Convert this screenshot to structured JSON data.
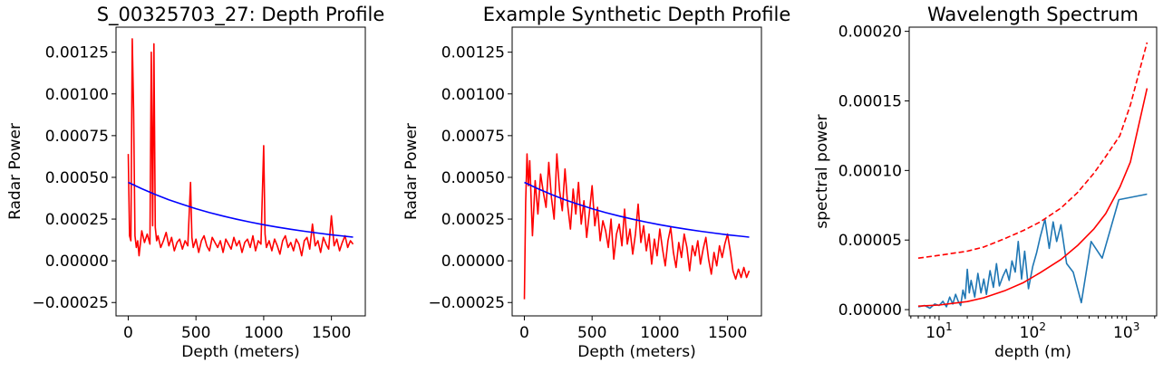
{
  "figure": {
    "bg": "#ffffff"
  },
  "chart_data": [
    {
      "type": "line",
      "title": "S_00325703_27: Depth Profile",
      "xlabel": "Depth (meters)",
      "ylabel": "Radar Power",
      "xlim": [
        -90,
        1750
      ],
      "ylim": [
        -0.00033,
        0.0014
      ],
      "xticks": [
        0,
        500,
        1000,
        1500
      ],
      "xtick_labels": [
        "0",
        "500",
        "1000",
        "1500"
      ],
      "yticks": [
        -0.00025,
        0,
        0.00025,
        0.0005,
        0.00075,
        0.001,
        0.00125
      ],
      "ytick_labels": [
        "−0.00025",
        "0.00000",
        "0.00025",
        "0.00050",
        "0.00075",
        "0.00100",
        "0.00125"
      ],
      "series": [
        {
          "color": "#ff0000",
          "x": [
            0,
            10,
            20,
            30,
            40,
            50,
            60,
            70,
            80,
            100,
            120,
            140,
            160,
            170,
            180,
            190,
            200,
            210,
            220,
            240,
            260,
            280,
            300,
            320,
            340,
            360,
            380,
            400,
            420,
            440,
            460,
            470,
            480,
            500,
            520,
            540,
            560,
            580,
            600,
            620,
            640,
            660,
            680,
            700,
            720,
            740,
            760,
            780,
            800,
            820,
            840,
            860,
            880,
            900,
            920,
            940,
            960,
            980,
            1000,
            1010,
            1020,
            1040,
            1060,
            1080,
            1100,
            1120,
            1140,
            1160,
            1180,
            1200,
            1220,
            1240,
            1260,
            1280,
            1300,
            1320,
            1340,
            1360,
            1380,
            1400,
            1420,
            1440,
            1460,
            1480,
            1500,
            1520,
            1540,
            1560,
            1580,
            1600,
            1620,
            1640,
            1660
          ],
          "y": [
            0.00064,
            0.00015,
            0.00012,
            0.00133,
            0.0009,
            0.00015,
            8e-05,
            0.00012,
            3e-05,
            0.00018,
            0.00011,
            0.00016,
            0.0001,
            0.00125,
            0.00021,
            0.0013,
            0.0002,
            0.00012,
            0.00015,
            8e-05,
            0.00012,
            0.00017,
            9e-05,
            0.00014,
            6e-05,
            0.00011,
            0.00013,
            7e-05,
            0.00012,
            9e-05,
            0.00047,
            0.00014,
            8e-05,
            0.00013,
            5e-05,
            0.00012,
            0.00015,
            9e-05,
            6e-05,
            0.00014,
            0.00011,
            8e-05,
            0.00012,
            5e-05,
            0.00013,
            0.0001,
            7e-05,
            0.00014,
            9e-05,
            0.00012,
            5e-05,
            0.00011,
            0.00013,
            8e-05,
            0.00015,
            6e-05,
            0.00012,
            0.0001,
            0.00069,
            0.00016,
            8e-05,
            0.00012,
            6e-05,
            0.00013,
            9e-05,
            4e-05,
            0.00012,
            0.00015,
            8e-05,
            0.00011,
            6e-05,
            0.00013,
            0.0001,
            3e-05,
            0.00012,
            0.00014,
            7e-05,
            0.00022,
            9e-05,
            0.00012,
            5e-05,
            0.00014,
            0.0001,
            7e-05,
            0.00027,
            9e-05,
            0.00013,
            6e-05,
            0.00011,
            0.00015,
            8e-05,
            0.00012,
            0.0001
          ]
        },
        {
          "color": "#0000ff",
          "x": [
            0,
            100,
            200,
            300,
            400,
            500,
            600,
            700,
            800,
            900,
            1000,
            1100,
            1200,
            1300,
            1400,
            1500,
            1600,
            1660
          ],
          "y": [
            0.00047,
            0.000432,
            0.000397,
            0.000366,
            0.000338,
            0.000312,
            0.000289,
            0.000268,
            0.000249,
            0.000232,
            0.000216,
            0.000202,
            0.000189,
            0.000177,
            0.000166,
            0.000156,
            0.000147,
            0.000142
          ]
        }
      ]
    },
    {
      "type": "line",
      "title": "Example Synthetic Depth Profile",
      "xlabel": "Depth (meters)",
      "ylabel": "Radar Power",
      "xlim": [
        -90,
        1750
      ],
      "ylim": [
        -0.00033,
        0.0014
      ],
      "xticks": [
        0,
        500,
        1000,
        1500
      ],
      "xtick_labels": [
        "0",
        "500",
        "1000",
        "1500"
      ],
      "yticks": [
        -0.00025,
        0,
        0.00025,
        0.0005,
        0.00075,
        0.001,
        0.00125
      ],
      "ytick_labels": [
        "−0.00025",
        "0.00000",
        "0.00025",
        "0.00050",
        "0.00075",
        "0.00100",
        "0.00125"
      ],
      "series": [
        {
          "color": "#ff0000",
          "x": [
            0,
            10,
            20,
            30,
            40,
            60,
            80,
            100,
            120,
            140,
            160,
            180,
            200,
            220,
            240,
            260,
            280,
            300,
            320,
            340,
            360,
            380,
            400,
            420,
            440,
            460,
            480,
            500,
            520,
            540,
            560,
            580,
            600,
            620,
            640,
            660,
            680,
            700,
            720,
            740,
            760,
            780,
            800,
            820,
            840,
            860,
            880,
            900,
            920,
            940,
            960,
            980,
            1000,
            1020,
            1040,
            1060,
            1080,
            1100,
            1120,
            1140,
            1160,
            1180,
            1200,
            1220,
            1240,
            1260,
            1280,
            1300,
            1320,
            1340,
            1360,
            1380,
            1400,
            1420,
            1440,
            1460,
            1480,
            1500,
            1520,
            1540,
            1560,
            1580,
            1600,
            1620,
            1640,
            1660
          ],
          "y": [
            -0.00023,
            0.00035,
            0.00064,
            0.00045,
            0.0006,
            0.00015,
            0.00048,
            0.00028,
            0.00052,
            0.00041,
            0.00032,
            0.00059,
            0.00038,
            0.00025,
            0.00064,
            0.00042,
            0.0003,
            0.00055,
            0.00033,
            0.00019,
            0.00043,
            0.00028,
            0.00047,
            0.00022,
            0.00036,
            0.00014,
            0.00029,
            0.00045,
            0.00021,
            0.00032,
            0.00012,
            0.00024,
            0.00018,
            8e-05,
            0.00025,
            1e-05,
            0.00016,
            0.00022,
            9e-05,
            0.00031,
            0.0001,
            0.00019,
            4e-05,
            0.00016,
            0.00034,
            0.00011,
            0.00021,
            6e-05,
            0.00016,
            -2e-05,
            0.00013,
            3e-05,
            0.00019,
            7e-05,
            -3e-05,
            0.00012,
            0.0002,
            5e-05,
            -4e-05,
            0.00011,
            2e-05,
            0.00016,
            8e-05,
            -6e-05,
            9e-05,
            3e-05,
            0.00012,
            -2e-05,
            7e-05,
            0.00014,
            1e-05,
            -8e-05,
            5e-05,
            -3e-05,
            9e-05,
            2e-05,
            0.0001,
            0.00016,
            6e-05,
            -6e-05,
            -0.00011,
            -5e-05,
            -0.0001,
            -4e-05,
            -0.0001,
            -6e-05
          ]
        },
        {
          "color": "#0000ff",
          "x": [
            0,
            100,
            200,
            300,
            400,
            500,
            600,
            700,
            800,
            900,
            1000,
            1100,
            1200,
            1300,
            1400,
            1500,
            1600,
            1660
          ],
          "y": [
            0.00047,
            0.000432,
            0.000397,
            0.000366,
            0.000338,
            0.000312,
            0.000289,
            0.000268,
            0.000249,
            0.000232,
            0.000216,
            0.000202,
            0.000189,
            0.000177,
            0.000166,
            0.000156,
            0.000147,
            0.000142
          ]
        }
      ]
    },
    {
      "type": "line",
      "title": "Wavelength Spectrum",
      "xlabel": "depth (m)",
      "ylabel": "spectral power",
      "xscale": "log",
      "xlim": [
        4.8,
        2100
      ],
      "ylim": [
        -4.5e-06,
        0.000203
      ],
      "xticks": [
        10,
        100,
        1000
      ],
      "xtick_labels": [
        "10",
        "10",
        "10"
      ],
      "xtick_exponents": [
        "1",
        "2",
        "3"
      ],
      "yticks": [
        0,
        5e-05,
        0.0001,
        0.00015,
        0.0002
      ],
      "ytick_labels": [
        "0.00000",
        "0.00005",
        "0.00010",
        "0.00015",
        "0.00020"
      ],
      "series": [
        {
          "color": "#1f77b4",
          "style": "solid",
          "x": [
            6,
            7,
            8,
            9,
            10,
            11,
            12,
            13,
            14,
            15,
            16,
            17,
            18,
            19,
            20,
            21,
            22,
            24,
            26,
            28,
            30,
            32,
            35,
            38,
            41,
            44,
            48,
            52,
            56,
            60,
            65,
            70,
            76,
            82,
            90,
            100,
            110,
            120,
            135,
            150,
            165,
            180,
            200,
            230,
            270,
            330,
            420,
            550,
            830,
            1660
          ],
          "y": [
            2e-06,
            3e-06,
            1e-06,
            4e-06,
            3e-06,
            6e-06,
            2e-06,
            9e-06,
            4e-06,
            1.1e-05,
            6e-06,
            3e-06,
            1.4e-05,
            8e-06,
            2.9e-05,
            1.2e-05,
            2.1e-05,
            9e-06,
            2.6e-05,
            1.2e-05,
            2.2e-05,
            1.1e-05,
            2.8e-05,
            1.6e-05,
            3.3e-05,
            1.7e-05,
            2.4e-05,
            2.9e-05,
            2.1e-05,
            3.5e-05,
            2.7e-05,
            4.9e-05,
            2.2e-05,
            4.2e-05,
            1.5e-05,
            3.1e-05,
            4.1e-05,
            5.2e-05,
            6.5e-05,
            4.4e-05,
            6.3e-05,
            4.9e-05,
            6.1e-05,
            3.3e-05,
            2.7e-05,
            5e-06,
            4.9e-05,
            3.7e-05,
            7.9e-05,
            8.3e-05
          ]
        },
        {
          "color": "#ff0000",
          "style": "solid",
          "x": [
            6,
            10,
            20,
            30,
            50,
            80,
            120,
            200,
            300,
            450,
            600,
            850,
            1100,
            1660
          ],
          "y": [
            2.5e-06,
            3.3e-06,
            5.8e-06,
            8.5e-06,
            1.35e-05,
            1.95e-05,
            2.65e-05,
            3.6e-05,
            4.6e-05,
            5.8e-05,
            6.9e-05,
            8.8e-05,
            0.000106,
            0.000159
          ]
        },
        {
          "color": "#ff0000",
          "style": "dashed",
          "x": [
            6,
            10,
            20,
            30,
            50,
            80,
            120,
            200,
            300,
            450,
            600,
            850,
            1100,
            1660
          ],
          "y": [
            3.7e-05,
            3.9e-05,
            4.2e-05,
            4.5e-05,
            5.1e-05,
            5.7e-05,
            6.3e-05,
            7.3e-05,
            8.4e-05,
            9.8e-05,
            0.00011,
            0.000125,
            0.000147,
            0.000192
          ]
        }
      ]
    }
  ]
}
